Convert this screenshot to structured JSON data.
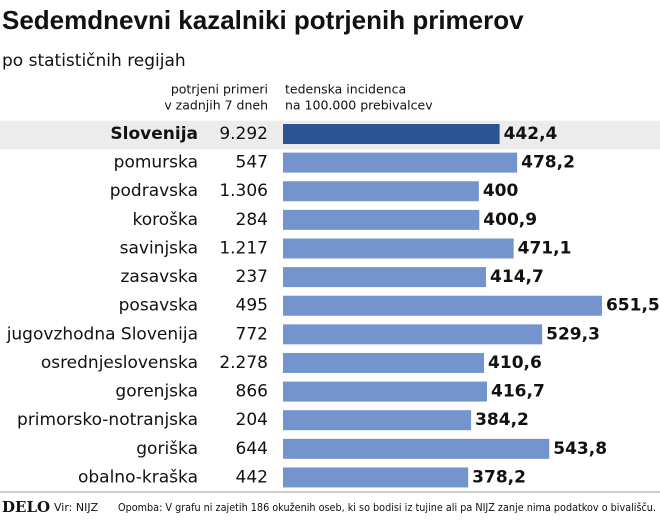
{
  "chart_data": {
    "type": "bar",
    "title": "Sedemdnevni kazalniki potrjenih primerov",
    "subtitle": "po statističnih regijah",
    "categories": [
      "Slovenija",
      "pomurska",
      "podravska",
      "koroška",
      "savinjska",
      "zasavska",
      "posavska",
      "jugovzhodna Slovenija",
      "osrednjeslovenska",
      "gorenjska",
      "primorsko-notranjska",
      "goriška",
      "obalno-kraška"
    ],
    "cases_header": [
      "potrjeni primeri",
      "v zadnjih 7 dneh"
    ],
    "cases": [
      9292,
      547,
      1306,
      284,
      1217,
      237,
      495,
      772,
      2278,
      866,
      204,
      644,
      442
    ],
    "cases_labels": [
      "9.292",
      "547",
      "1.306",
      "284",
      "1.217",
      "237",
      "495",
      "772",
      "2.278",
      "866",
      "204",
      "644",
      "442"
    ],
    "bars_header": [
      "tedenska incidenca",
      "na 100.000 prebivalcev"
    ],
    "values": [
      442.4,
      478.2,
      400,
      400.9,
      471.1,
      414.7,
      651.5,
      529.3,
      410.6,
      416.7,
      384.2,
      543.8,
      378.2
    ],
    "value_labels": [
      "442,4",
      "478,2",
      "400",
      "400,9",
      "471,1",
      "414,7",
      "651,5",
      "529,3",
      "410,6",
      "416,7",
      "384,2",
      "543,8",
      "378,2"
    ],
    "xlim": [
      0,
      770
    ],
    "color": "#7394cc",
    "highlight": 0,
    "highlight_color": "#2b5494",
    "footer": {
      "logo": "DELO",
      "source": "Vir: NIJZ",
      "note": "Opomba: V grafu ni zajetih 186 okuženih oseb, ki so bodisi iz tujine ali pa NIJZ zanje nima podatkov o bivališču."
    }
  }
}
